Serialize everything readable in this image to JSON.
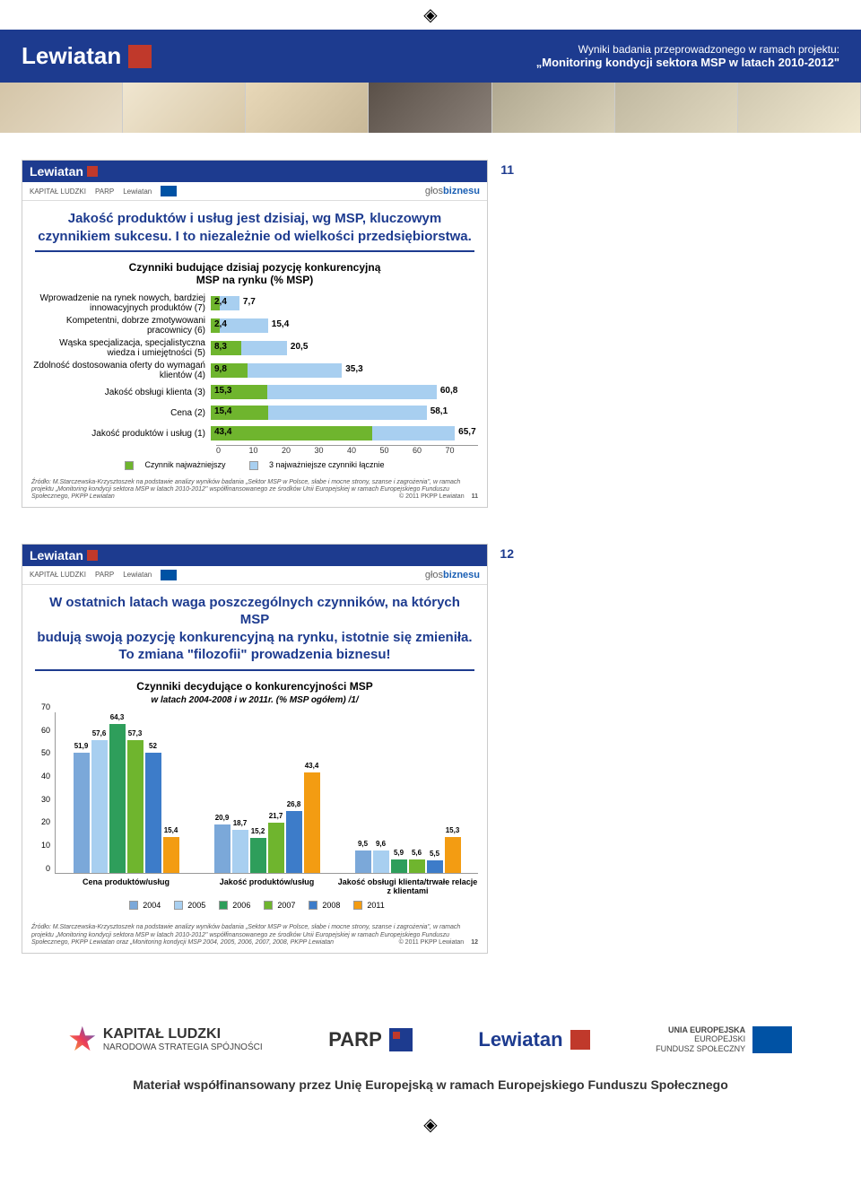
{
  "brand": "Lewiatan",
  "header": {
    "line1": "Wyniki badania przeprowadzonego w ramach projektu:",
    "line2": "„Monitoring kondycji sektora MSP w latach 2010-2012\""
  },
  "slide11": {
    "num": "11",
    "title1": "Jakość produktów i usług jest dzisiaj, wg MSP, kluczowym",
    "title2": "czynnikiem sukcesu. I to niezależnie od wielkości przedsiębiorstwa.",
    "sub1": "Czynniki budujące dzisiaj pozycję konkurencyjną",
    "sub2": "MSP na rynku (% MSP)",
    "xmax": 70,
    "xticks": [
      "0",
      "10",
      "20",
      "30",
      "40",
      "50",
      "60",
      "70"
    ],
    "colors": {
      "s1": "#6fb52e",
      "s2": "#a8cff0"
    },
    "rows": [
      {
        "label": "Wprowadzenie na rynek nowych, bardziej innowacyjnych produktów (7)",
        "v1": 2.4,
        "v2": 7.7
      },
      {
        "label": "Kompetentni, dobrze zmotywowani pracownicy (6)",
        "v1": 2.4,
        "v2": 15.4
      },
      {
        "label": "Wąska specjalizacja, specjalistyczna wiedza i umiejętności (5)",
        "v1": 8.3,
        "v2": 20.5
      },
      {
        "label": "Zdolność dostosowania oferty do wymagań klientów (4)",
        "v1": 9.8,
        "v2": 35.3
      },
      {
        "label": "Jakość obsługi klienta (3)",
        "v1": 15.3,
        "v2": 60.8
      },
      {
        "label": "Cena (2)",
        "v1": 15.4,
        "v2": 58.1
      },
      {
        "label": "Jakość produktów i usług (1)",
        "v1": 43.4,
        "v2": 65.7
      }
    ],
    "legend": {
      "l1": "Czynnik najważniejszy",
      "l2": "3 najważniejsze czynniki łącznie"
    },
    "source": "Źródło: M.Starczewska-Krzysztoszek na podstawie analizy wyników badania „Sektor MSP w Polsce, słabe i mocne strony, szanse i zagrożenia\", w ramach projektu „Monitoring kondycji sektora MSP w latach 2010-2012\" współfinansowanego ze środków Unii Europejskiej w ramach Europejskiego Funduszu Społecznego, PKPP Lewiatan",
    "copyright": "© 2011 PKPP Lewiatan",
    "page": "11"
  },
  "slide12": {
    "num": "12",
    "title1": "W ostatnich latach waga poszczególnych czynników, na których MSP",
    "title2": "budują swoją pozycję konkurencyjną na rynku, istotnie się zmieniła.",
    "title3": "To zmiana \"filozofii\" prowadzenia biznesu!",
    "sub1": "Czynniki decydujące o konkurencyjności MSP",
    "sub2": "w latach 2004-2008 i w 2011r. (% MSP ogółem) /1/",
    "ymax": 70,
    "yticks": [
      0,
      10,
      20,
      30,
      40,
      50,
      60,
      70
    ],
    "years": [
      "2004",
      "2005",
      "2006",
      "2007",
      "2008",
      "2011"
    ],
    "colors": [
      "#7ba8d9",
      "#a8cff0",
      "#2e9e5b",
      "#6fb52e",
      "#3d7cc9",
      "#f39c12"
    ],
    "groups": [
      {
        "label": "Cena produktów/usług",
        "vals": [
          51.9,
          57.6,
          64.3,
          57.3,
          52.0,
          15.4
        ]
      },
      {
        "label": "Jakość produktów/usług",
        "vals": [
          20.9,
          18.7,
          15.2,
          21.7,
          26.8,
          43.4
        ]
      },
      {
        "label": "Jakość obsługi klienta/trwałe relacje z klientami",
        "vals": [
          9.5,
          9.6,
          5.9,
          5.6,
          5.5,
          15.3
        ]
      }
    ],
    "source": "Źródło: M.Starczewska-Krzysztoszek na podstawie analizy wyników badania „Sektor MSP w Polsce, słabe i mocne strony, szanse i zagrożenia\", w ramach projektu „Monitoring kondycji sektora MSP w latach 2010-2012\" współfinansowanego ze środków Unii Europejskiej w ramach Europejskiego Funduszu Społecznego, PKPP Lewiatan oraz „Monitoring kondycji MSP 2004, 2005, 2006, 2007, 2008, PKPP Lewiatan",
    "copyright": "© 2011 PKPP Lewiatan",
    "page": "12"
  },
  "sponsors": {
    "kapital": "KAPITAŁ LUDZKI",
    "kapital_sub": "NARODOWA STRATEGIA SPÓJNOŚCI",
    "parp": "PARP",
    "glos_pre": "głos",
    "glos_post": "biznesu"
  },
  "footer": {
    "kapital": "KAPITAŁ LUDZKI",
    "kapital_sub": "NARODOWA STRATEGIA SPÓJNOŚCI",
    "parp": "PARP",
    "eu1": "UNIA EUROPEJSKA",
    "eu2": "EUROPEJSKI",
    "eu3": "FUNDUSZ SPOŁECZNY",
    "text": "Materiał współfinansowany przez Unię Europejską w ramach Europejskiego Funduszu Społecznego"
  }
}
